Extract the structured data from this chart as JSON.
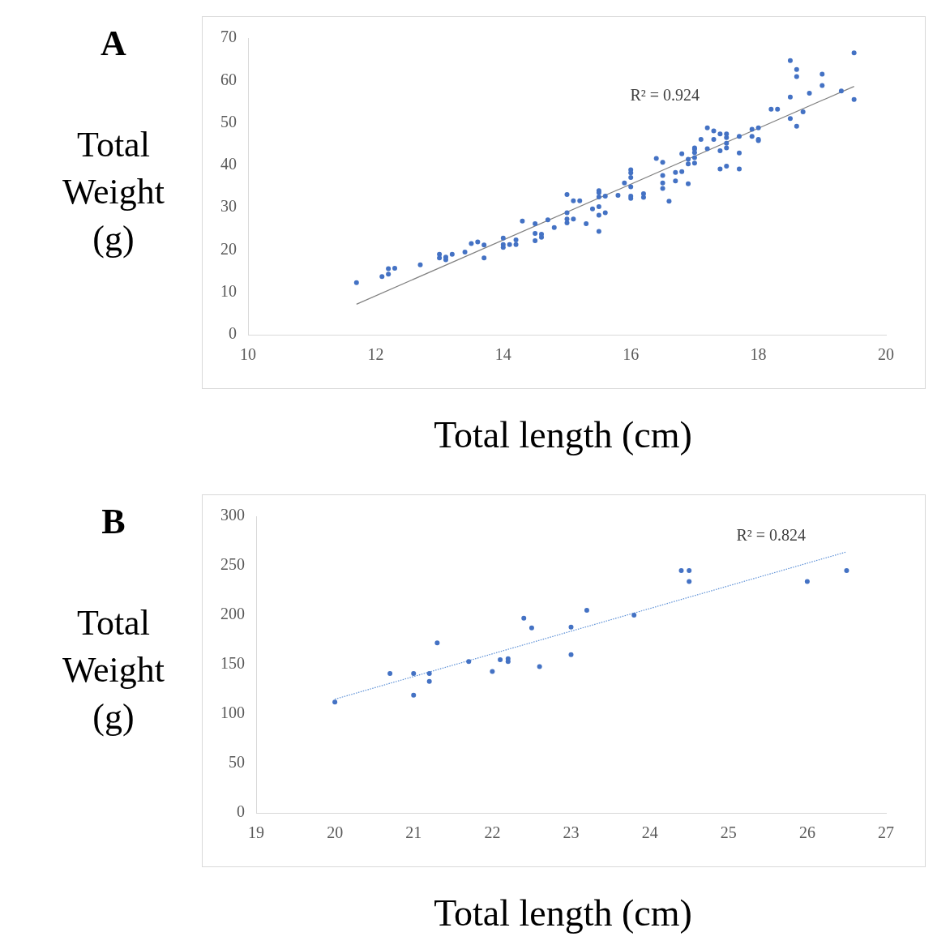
{
  "chart_data": [
    {
      "type": "scatter",
      "title": "A",
      "xlabel": "Total length (cm)",
      "ylabel": "Total Weight (g)",
      "xlim": [
        10,
        20
      ],
      "xticks": [
        10,
        12,
        14,
        16,
        18,
        20
      ],
      "ylim": [
        0,
        70
      ],
      "yticks": [
        0,
        10,
        20,
        30,
        40,
        50,
        60,
        70
      ],
      "grid": false,
      "legend": false,
      "annotations": [
        "R² = 0.924"
      ],
      "series": [
        {
          "type": "scatter",
          "color": "#4472c4",
          "marker": "circle",
          "x": [
            11.7,
            12.1,
            12.2,
            12.2,
            12.3,
            12.7,
            13.0,
            13.0,
            13.1,
            13.1,
            13.2,
            13.4,
            13.5,
            13.6,
            13.7,
            13.7,
            14.0,
            14.0,
            14.0,
            14.1,
            14.2,
            14.2,
            14.3,
            14.5,
            14.5,
            14.5,
            14.6,
            14.6,
            14.7,
            14.8,
            15.0,
            15.0,
            15.0,
            15.0,
            15.1,
            15.1,
            15.2,
            15.3,
            15.4,
            15.5,
            15.5,
            15.5,
            15.5,
            15.5,
            15.5,
            15.6,
            15.6,
            15.8,
            15.9,
            16.0,
            16.0,
            16.0,
            16.0,
            16.0,
            16.0,
            16.2,
            16.2,
            16.4,
            16.5,
            16.5,
            16.5,
            16.5,
            16.6,
            16.7,
            16.7,
            16.8,
            16.8,
            16.9,
            16.9,
            16.9,
            17.0,
            17.0,
            17.0,
            17.0,
            17.0,
            17.1,
            17.2,
            17.2,
            17.3,
            17.3,
            17.4,
            17.4,
            17.4,
            17.5,
            17.5,
            17.5,
            17.5,
            17.5,
            17.7,
            17.7,
            17.7,
            17.9,
            17.9,
            18.0,
            18.0,
            18.0,
            18.2,
            18.3,
            18.5,
            18.5,
            18.5,
            18.6,
            18.6,
            18.6,
            18.7,
            18.8,
            19.0,
            19.0,
            19.3,
            19.5,
            19.5
          ],
          "values": [
            12.3,
            13.7,
            14.3,
            15.6,
            15.7,
            16.5,
            19.0,
            18.1,
            17.7,
            18.3,
            19.0,
            19.5,
            21.5,
            21.9,
            21.2,
            18.1,
            22.8,
            21.3,
            20.6,
            21.3,
            22.4,
            21.3,
            26.8,
            26.2,
            23.9,
            22.2,
            23.7,
            23.0,
            27.1,
            25.3,
            33.1,
            28.8,
            27.3,
            26.4,
            31.6,
            27.3,
            31.6,
            26.2,
            29.7,
            34.0,
            33.5,
            32.5,
            30.2,
            28.2,
            24.4,
            32.7,
            28.8,
            32.9,
            35.8,
            38.9,
            38.2,
            37.1,
            34.9,
            32.7,
            32.2,
            33.3,
            32.4,
            41.6,
            40.7,
            37.6,
            35.8,
            34.5,
            31.5,
            38.3,
            36.3,
            42.7,
            38.5,
            41.4,
            40.3,
            35.6,
            44.1,
            43.8,
            43.0,
            41.8,
            40.5,
            46.1,
            48.8,
            43.9,
            48.1,
            46.1,
            47.4,
            43.4,
            39.1,
            47.4,
            46.5,
            45.2,
            44.1,
            39.8,
            46.8,
            42.9,
            39.1,
            48.5,
            46.8,
            48.8,
            46.1,
            45.8,
            53.2,
            53.2,
            64.7,
            56.1,
            51.0,
            62.6,
            60.9,
            49.2,
            52.6,
            57.0,
            61.5,
            58.8,
            57.5,
            66.5,
            55.5
          ]
        },
        {
          "type": "line",
          "color": "#808080",
          "marker": "none",
          "line_style": "solid",
          "x": [
            11.7,
            19.5
          ],
          "values": [
            7.2,
            58.6
          ]
        }
      ]
    },
    {
      "type": "scatter",
      "title": "B",
      "xlabel": "Total length (cm)",
      "ylabel": "Total Weight (g)",
      "xlim": [
        19,
        27
      ],
      "xticks": [
        19,
        20,
        21,
        22,
        23,
        24,
        25,
        26,
        27
      ],
      "ylim": [
        0,
        300
      ],
      "yticks": [
        0,
        50,
        100,
        150,
        200,
        250,
        300
      ],
      "grid": false,
      "legend": false,
      "annotations": [
        "R² = 0.824"
      ],
      "series": [
        {
          "type": "scatter",
          "color": "#4472c4",
          "marker": "circle",
          "x": [
            20.0,
            20.7,
            21.0,
            21.0,
            21.2,
            21.2,
            21.3,
            21.7,
            22.0,
            22.1,
            22.2,
            22.2,
            22.4,
            22.5,
            22.6,
            23.0,
            23.0,
            23.2,
            23.8,
            24.4,
            24.5,
            24.5,
            26.0,
            26.5
          ],
          "values": [
            112,
            141,
            141,
            119,
            141,
            133,
            172,
            153,
            143,
            155,
            156,
            153,
            197,
            187,
            148,
            188,
            160,
            205,
            200,
            245,
            245,
            234,
            234,
            245
          ]
        },
        {
          "type": "line",
          "color": "#5b8fd6",
          "marker": "none",
          "line_style": "dotted",
          "x": [
            20.0,
            26.5
          ],
          "values": [
            115,
            264
          ]
        }
      ]
    }
  ]
}
